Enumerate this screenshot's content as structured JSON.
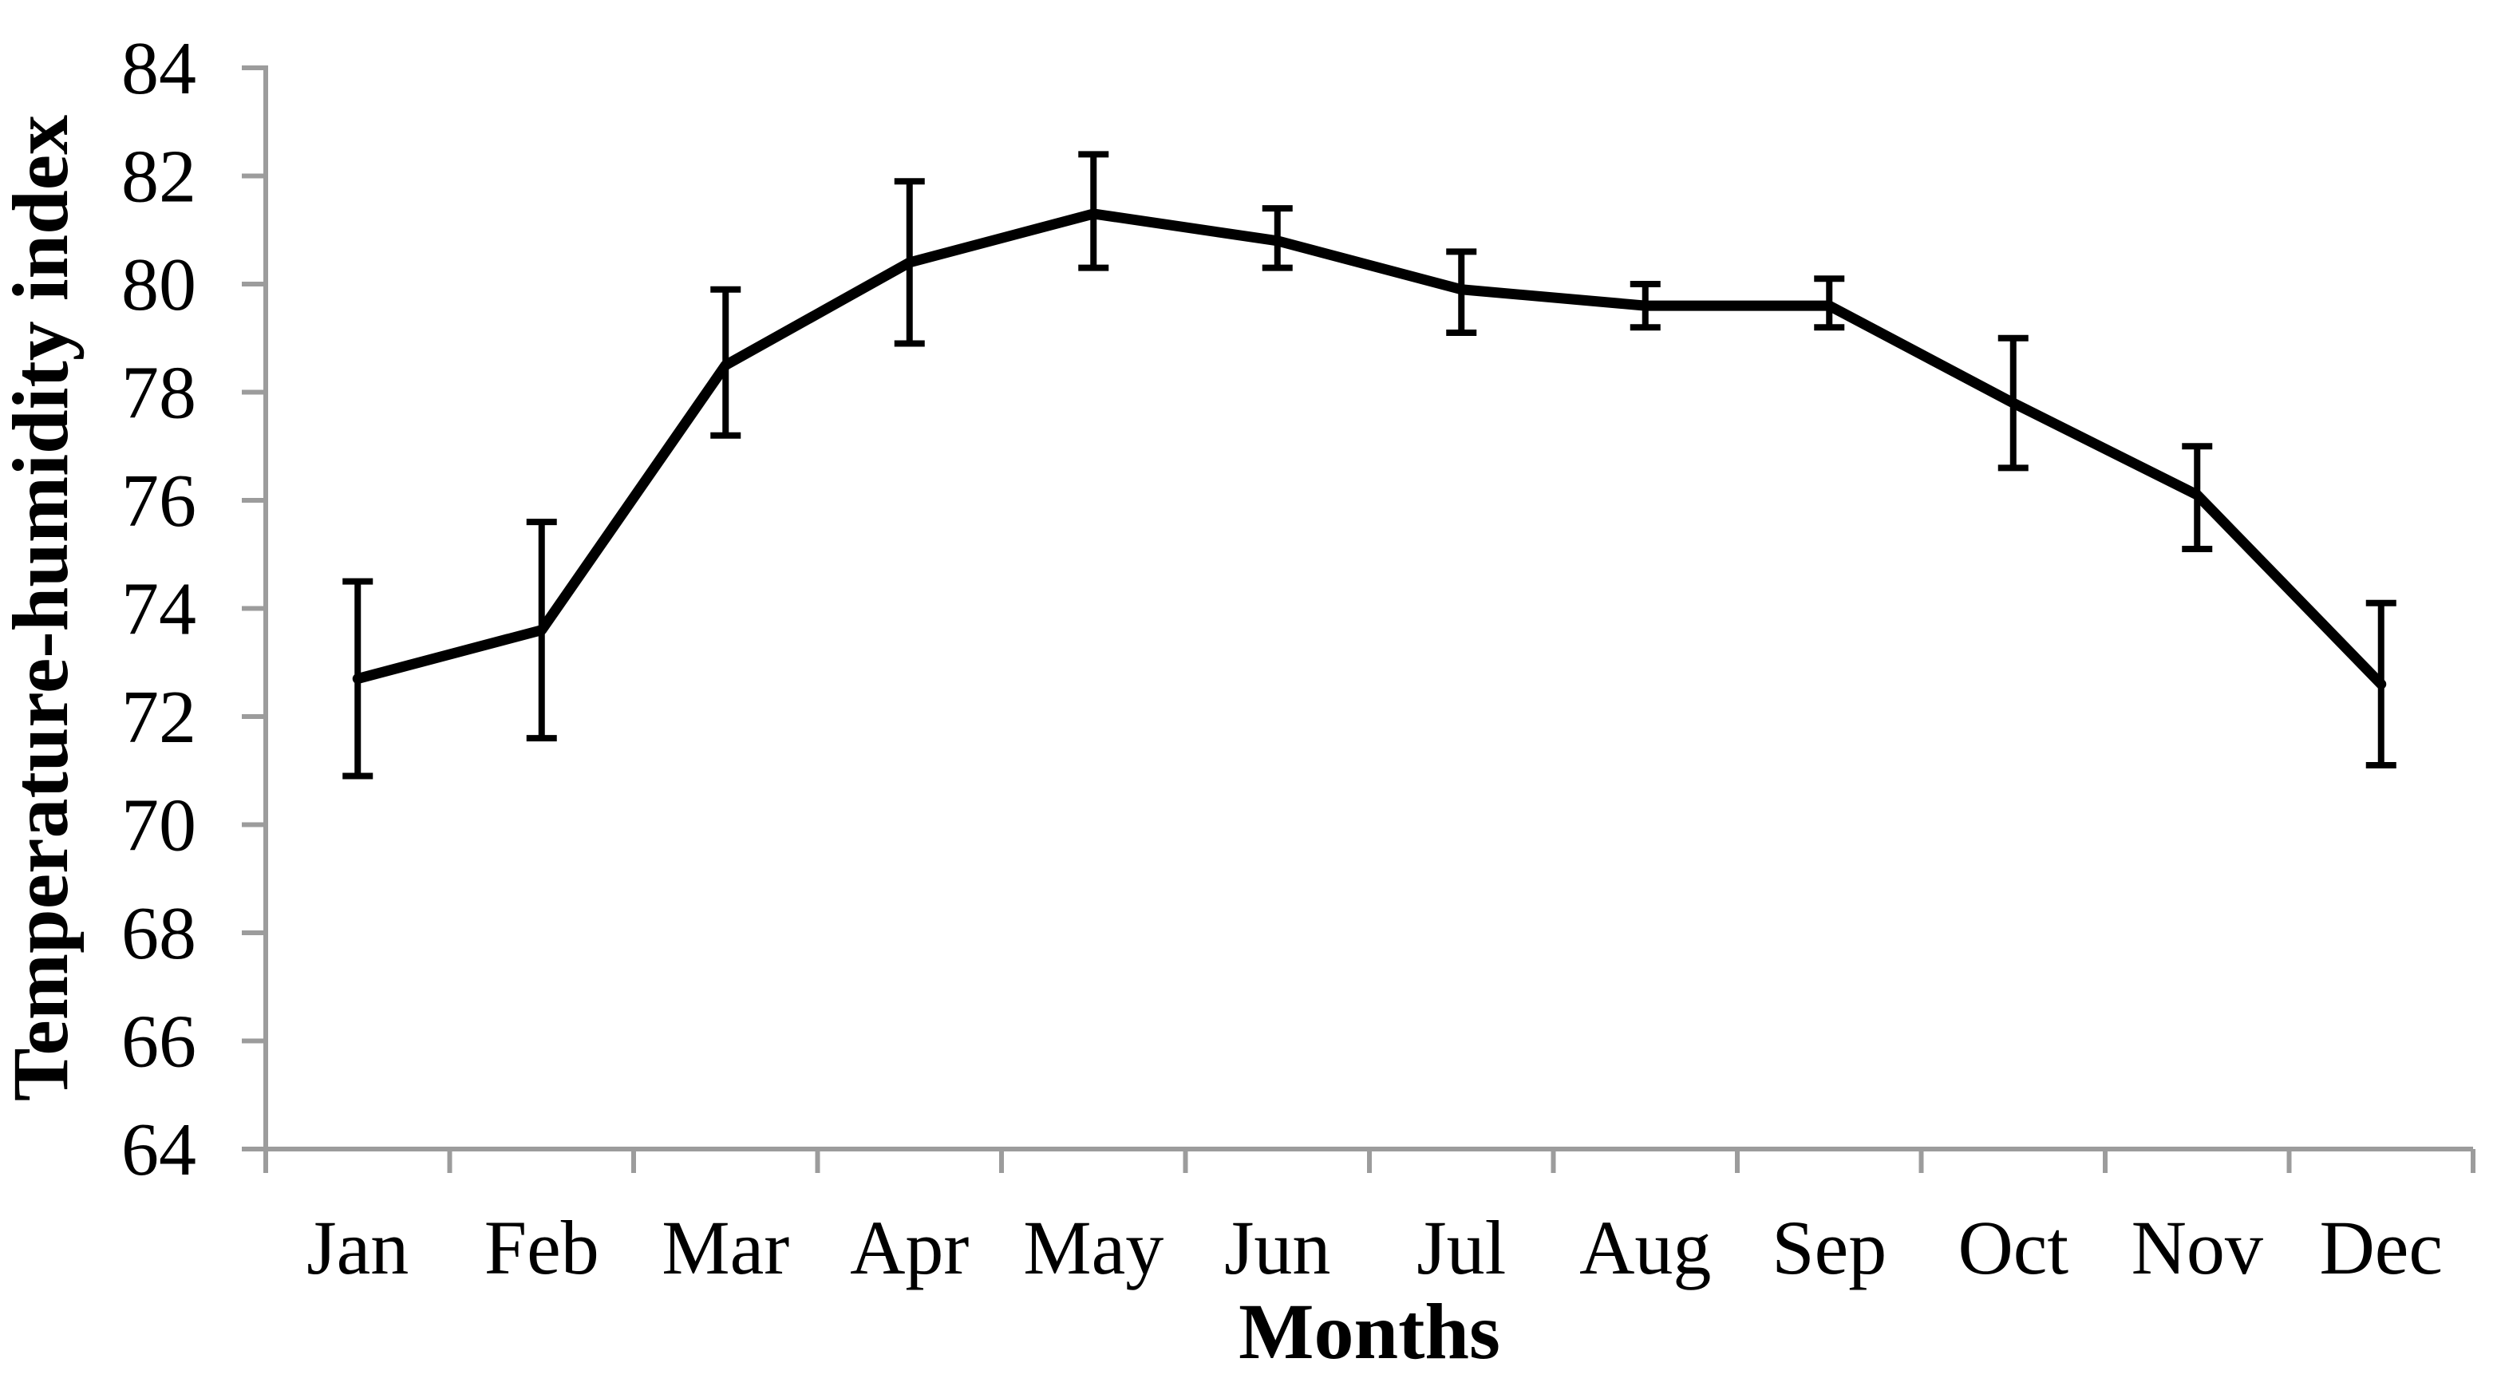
{
  "chart_data": {
    "type": "line",
    "title": "",
    "xlabel": "Months",
    "ylabel": "Temperature-humidity index",
    "categories": [
      "Jan",
      "Feb",
      "Mar",
      "Apr",
      "May",
      "Jun",
      "Jul",
      "Aug",
      "Sep",
      "Oct",
      "Nov",
      "Dec"
    ],
    "series": [
      {
        "name": "Temperature-humidity index",
        "values": [
          72.7,
          73.6,
          78.5,
          80.4,
          81.3,
          80.8,
          79.9,
          79.6,
          79.6,
          77.8,
          76.1,
          72.6
        ],
        "error_upper": [
          74.5,
          75.6,
          79.9,
          81.9,
          82.4,
          81.4,
          80.6,
          80.0,
          80.1,
          79.0,
          77.0,
          74.1
        ],
        "error_lower": [
          70.9,
          71.6,
          77.2,
          78.9,
          80.3,
          80.3,
          79.1,
          79.2,
          79.2,
          76.6,
          75.1,
          71.1
        ]
      }
    ],
    "ylim": [
      64,
      84
    ],
    "yticks": [
      64,
      66,
      68,
      70,
      72,
      74,
      76,
      78,
      80,
      82,
      84
    ],
    "grid": false,
    "legend_position": "none",
    "error_bars": true,
    "colors": {
      "line": "#000000",
      "error_bar": "#000000",
      "axis": "#9c9c9c",
      "text": "#000000",
      "background": "#ffffff"
    }
  }
}
